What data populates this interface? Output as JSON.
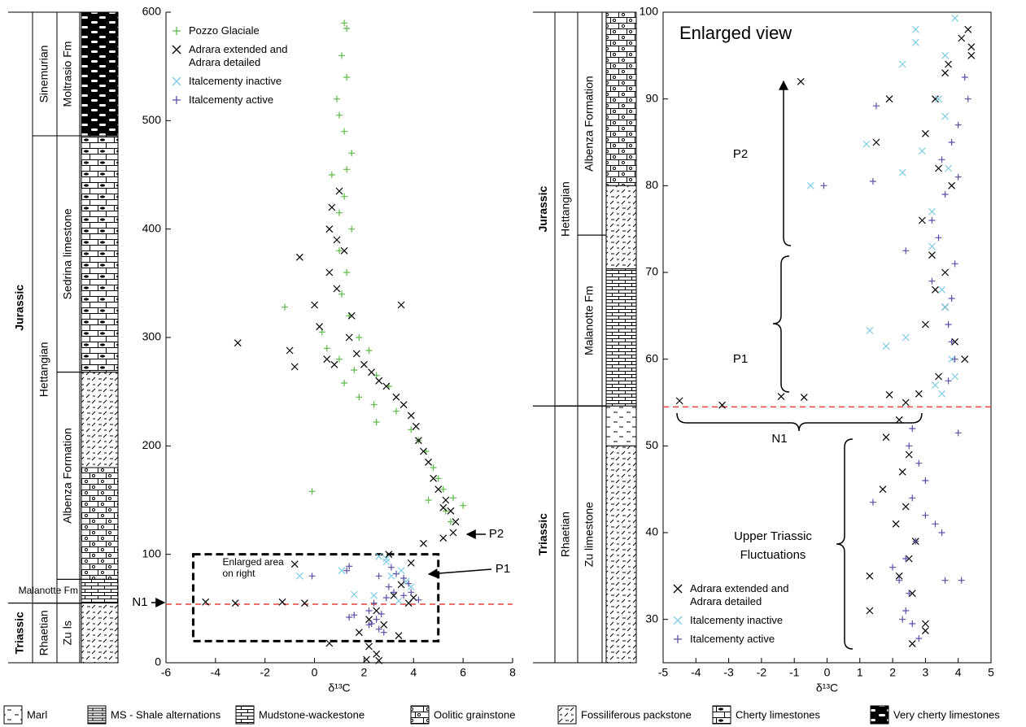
{
  "chart_data": [
    {
      "type": "scatter",
      "x_label": "δ¹³C",
      "xlim": [
        -6,
        8
      ],
      "xticks": [
        -6,
        -4,
        -2,
        0,
        2,
        4,
        6,
        8
      ],
      "ylim": [
        0,
        600
      ],
      "yticks": [
        0,
        100,
        200,
        300,
        400,
        500,
        600
      ],
      "box": false,
      "legend": "upper left",
      "series": [
        {
          "name": "Pozzo Glaciale",
          "color": "#5cb947",
          "marker": "+",
          "x": [
            1.2,
            1.3,
            1.1,
            1.3,
            0.9,
            1.0,
            1.2,
            1.5,
            1.3,
            0.7,
            1.2,
            1.0,
            1.5,
            1.0,
            1.3,
            1.1,
            -1.2,
            1.4,
            0.3,
            1.8,
            0.5,
            2.2,
            1.0,
            1.6,
            2.5,
            1.2,
            3.0,
            1.8,
            2.4,
            3.3,
            2.5,
            3.9,
            4.2,
            4.5,
            4.8,
            5.0,
            5.2,
            -0.1,
            5.6,
            5.3,
            6.0,
            5.5,
            4.6
          ],
          "values": [
            590,
            585,
            560,
            540,
            520,
            505,
            490,
            470,
            455,
            450,
            430,
            415,
            400,
            380,
            360,
            340,
            328,
            320,
            305,
            300,
            290,
            288,
            280,
            270,
            265,
            258,
            255,
            245,
            238,
            232,
            222,
            215,
            205,
            195,
            180,
            170,
            160,
            158,
            152,
            140,
            145,
            130,
            150
          ]
        },
        {
          "name": "Adrara extended and Adrara detailed",
          "color": "#000000",
          "marker": "x",
          "x": [
            -3.1,
            -0.6,
            -1.0,
            -0.8,
            0.0,
            0.2,
            0.5,
            0.8,
            0.6,
            0.9,
            0.7,
            1.0,
            0.6,
            1.2,
            0.9,
            1.5,
            1.4,
            1.7,
            2.0,
            2.3,
            2.6,
            2.9,
            3.3,
            3.6,
            3.9,
            4.1,
            4.2,
            4.4,
            4.6,
            4.8,
            5.0,
            5.3,
            5.5,
            5.7,
            5.6,
            5.2,
            4.4,
            3.9,
            3.5,
            3.2,
            4.0,
            3.8,
            2.5,
            2.2,
            2.8,
            1.8,
            3.4,
            0.6,
            2.2,
            2.5,
            2.1,
            2.6,
            -4.4,
            -3.2,
            -1.3,
            -0.4,
            -0.8,
            3.5,
            3.0,
            5.2
          ],
          "values": [
            295,
            374,
            288,
            273,
            330,
            310,
            280,
            275,
            360,
            390,
            420,
            435,
            400,
            380,
            345,
            320,
            300,
            285,
            275,
            268,
            260,
            255,
            245,
            238,
            228,
            218,
            205,
            195,
            185,
            170,
            160,
            150,
            140,
            130,
            120,
            115,
            110,
            92,
            72,
            62,
            60,
            55,
            48,
            40,
            35,
            28,
            25,
            18,
            15,
            8,
            3,
            2,
            56,
            55,
            56,
            55,
            91,
            330,
            100,
            143
          ]
        },
        {
          "name": "Italcementy inactive",
          "color": "#7fcce3",
          "marker": "x",
          "x": [
            -0.6,
            1.1,
            2.6,
            2.9,
            3.1,
            3.5,
            3.7,
            3.9,
            1.6,
            2.4,
            3.4,
            2.9
          ],
          "values": [
            80,
            85,
            98,
            96,
            80,
            85,
            75,
            70,
            63,
            62,
            57,
            93
          ]
        },
        {
          "name": "Italcementy active",
          "color": "#5a4fa6",
          "marker": "+",
          "x": [
            -0.1,
            1.4,
            1.3,
            2.6,
            3.1,
            3.3,
            3.6,
            3.8,
            3.2,
            3.6,
            2.4,
            2.2,
            2.7,
            2.5,
            2.2,
            2.6,
            2.8,
            1.6,
            1.4,
            4.2,
            3.0,
            2.3,
            2.9,
            3.9
          ],
          "values": [
            80,
            89,
            85,
            80,
            88,
            82,
            78,
            73,
            65,
            62,
            55,
            48,
            45,
            40,
            35,
            31,
            28,
            44,
            42,
            58,
            70,
            36,
            60,
            65
          ]
        }
      ],
      "hline": {
        "value": 54,
        "color": "#e8413f"
      },
      "highlight_box": {
        "label": [
          "Enlarged area",
          "on right"
        ],
        "xlim": [
          -4.9,
          5
        ],
        "ylim": [
          20,
          100
        ]
      },
      "annotations": [
        {
          "text": "N1"
        },
        {
          "text": "P1"
        },
        {
          "text": "P2"
        }
      ],
      "strat": {
        "eras": [
          {
            "name": "Jurassic",
            "from": 55,
            "to": 600
          },
          {
            "name": "Triassic",
            "from": 0,
            "to": 55
          }
        ],
        "stages": [
          {
            "name": "Sinemurian",
            "from": 486,
            "to": 600
          },
          {
            "name": "Hettangian",
            "from": 55,
            "to": 486
          },
          {
            "name": "Rhaetian",
            "from": 0,
            "to": 55
          }
        ],
        "formations": [
          {
            "name": "Moltrasio Fm",
            "from": 486,
            "to": 600
          },
          {
            "name": "Sedrina limestone",
            "from": 268,
            "to": 486
          },
          {
            "name": "Albenza Formation",
            "from": 77,
            "to": 268
          },
          {
            "name": "Malanotte Fm",
            "from": 55,
            "to": 77
          },
          {
            "name": "Zu ls",
            "from": 0,
            "to": 55
          }
        ],
        "lithology": [
          {
            "lith": 6,
            "from": 486,
            "to": 600
          },
          {
            "lith": 5,
            "from": 268,
            "to": 486
          },
          {
            "lith": 4,
            "from": 180,
            "to": 268
          },
          {
            "lith": 3,
            "from": 77,
            "to": 180
          },
          {
            "lith": 2,
            "from": 55,
            "to": 77
          },
          {
            "lith": 4,
            "from": 0,
            "to": 55
          }
        ]
      }
    },
    {
      "type": "scatter",
      "title": "Enlarged view",
      "x_label": "δ¹³C",
      "xlim": [
        -5,
        5
      ],
      "xticks": [
        -5,
        -4,
        -3,
        -2,
        -1,
        0,
        1,
        2,
        3,
        4,
        5
      ],
      "ylim": [
        25,
        100
      ],
      "yticks": [
        30,
        40,
        50,
        60,
        70,
        80,
        90,
        100
      ],
      "box": true,
      "legend": "lower left",
      "series": [
        {
          "name": "Adrara extended and Adrara detailed",
          "color": "#000000",
          "marker": "x",
          "x": [
            4.3,
            4.1,
            4.4,
            4.4,
            3.7,
            -0.8,
            3.6,
            1.9,
            3.3,
            1.5,
            3.0,
            3.4,
            3.8,
            2.9,
            3.2,
            3.6,
            3.3,
            3.6,
            3.0,
            3.9,
            4.2,
            3.4,
            2.8,
            2.4,
            -4.5,
            -3.2,
            -1.4,
            -0.7,
            1.9,
            2.2,
            1.8,
            2.5,
            2.3,
            1.7,
            2.4,
            2.1,
            2.7,
            2.5,
            2.2,
            1.3,
            2.6,
            1.3,
            3.0,
            3.0,
            2.6
          ],
          "values": [
            98,
            97,
            96,
            95,
            94,
            92,
            93,
            90,
            90,
            85,
            86,
            82,
            80,
            76,
            72,
            70,
            68,
            66,
            64,
            62,
            60,
            58,
            56,
            55,
            55.2,
            54.7,
            55.7,
            55.6,
            55.9,
            53,
            51,
            49,
            47,
            45,
            43,
            41,
            39,
            37,
            35,
            35,
            33,
            31,
            29.5,
            28.7,
            27.2
          ]
        },
        {
          "name": "Italcementy inactive",
          "color": "#7fcce3",
          "marker": "x",
          "x": [
            3.9,
            2.7,
            2.7,
            3.6,
            2.3,
            3.4,
            3.6,
            1.2,
            2.9,
            2.3,
            -0.5,
            3.7,
            3.2,
            3.2,
            3.5,
            3.6,
            1.3,
            2.4,
            1.8,
            3.8,
            3.3,
            3.5,
            3.9
          ],
          "values": [
            99.3,
            98,
            96.5,
            95,
            94,
            90,
            88,
            84.8,
            84,
            81.5,
            80,
            82,
            77,
            73,
            68,
            66,
            63.3,
            62.5,
            61.5,
            60,
            57,
            56,
            58
          ]
        },
        {
          "name": "Italcementy active",
          "color": "#5a4fa6",
          "marker": "+",
          "x": [
            1.5,
            4.2,
            4.3,
            4.0,
            3.8,
            3.5,
            4.0,
            3.6,
            3.2,
            2.4,
            3.4,
            3.9,
            3.2,
            3.8,
            3.7,
            3.8,
            3.9,
            3.7,
            -0.1,
            1.4,
            4.0,
            2.6,
            2.5,
            2.8,
            3.0,
            2.6,
            1.4,
            3.0,
            3.3,
            3.5,
            2.7,
            2.4,
            2.0,
            2.2,
            2.5,
            2.4,
            2.6,
            2.8,
            3.6,
            4.1,
            2.3
          ],
          "values": [
            89.2,
            92.5,
            90,
            87,
            85,
            83,
            81,
            79,
            76,
            72.5,
            74,
            71,
            69,
            67,
            64,
            62,
            60,
            57.5,
            80,
            80.5,
            51.5,
            52,
            50,
            48,
            46,
            44,
            43.5,
            42,
            41,
            40,
            39,
            37,
            36,
            34.5,
            33,
            31,
            29.5,
            27.8,
            34.5,
            34.5,
            30
          ]
        }
      ],
      "hline": {
        "value": 54.5,
        "color": "#e8413f"
      },
      "annotations": [
        {
          "text": "P2"
        },
        {
          "text": "P1"
        },
        {
          "text": "N1"
        },
        {
          "text": "Upper Triassic"
        },
        {
          "text": "Fluctuations"
        }
      ],
      "strat": {
        "eras": [
          {
            "name": "Jurassic",
            "from": 54.6,
            "to": 100
          },
          {
            "name": "Triassic",
            "from": 25,
            "to": 54.6
          }
        ],
        "stages": [
          {
            "name": "Hettangian",
            "from": 54.6,
            "to": 100
          },
          {
            "name": "Rhaetian",
            "from": 25,
            "to": 54.6
          }
        ],
        "formations": [
          {
            "name": "Albenza Formation",
            "from": 74.3,
            "to": 100
          },
          {
            "name": "Malanotte Fm",
            "from": 54.6,
            "to": 74.3
          },
          {
            "name": "Zu limestone",
            "from": 25,
            "to": 54.6
          }
        ],
        "lithology": [
          {
            "lith": 3,
            "from": 80,
            "to": 100
          },
          {
            "lith": 4,
            "from": 70.4,
            "to": 80
          },
          {
            "lith": 2,
            "from": 54.6,
            "to": 70.4
          },
          {
            "lith": 0,
            "from": 50,
            "to": 54.6
          },
          {
            "lith": 4,
            "from": 25,
            "to": 50
          }
        ]
      }
    }
  ],
  "lithology_legend": [
    "Marl",
    "MS - Shale alternations",
    "Mudstone-wackestone",
    "Oolitic grainstone",
    "Fossiliferous packstone",
    "Cherty limestones",
    "Very cherty limestones"
  ]
}
